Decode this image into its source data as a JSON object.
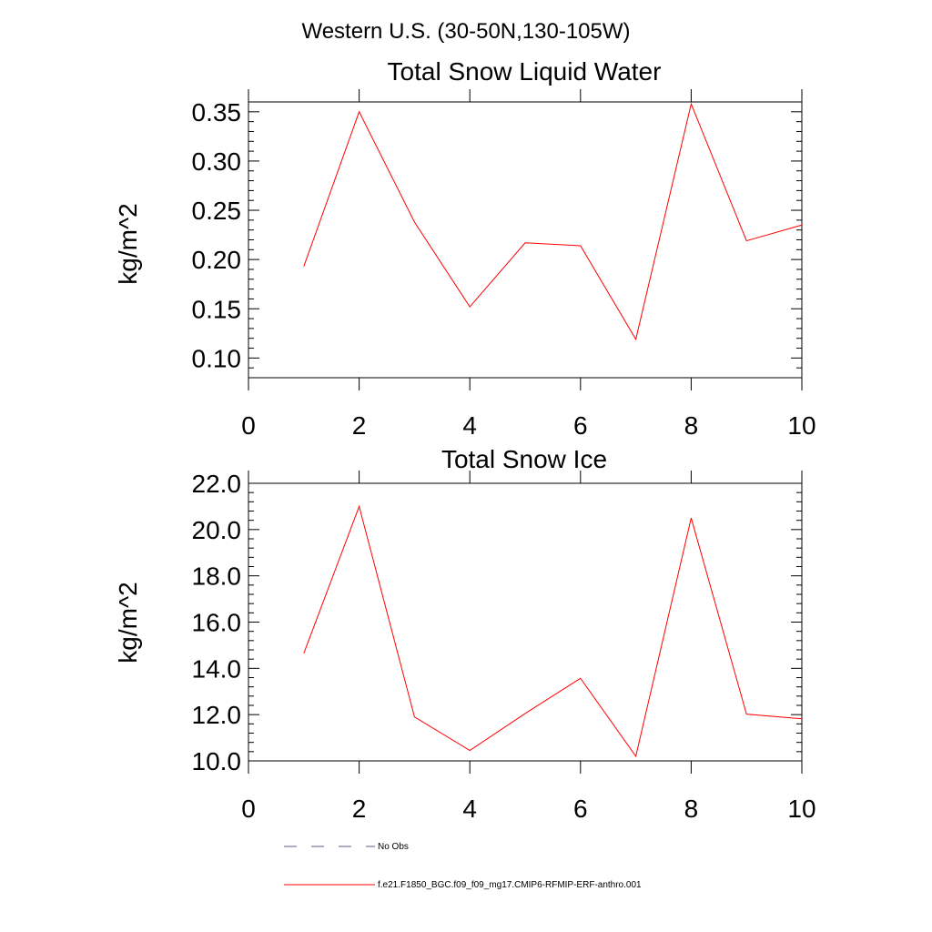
{
  "figure": {
    "suptitle": "Western U.S. (30-50N,130-105W)"
  },
  "chart_data": [
    {
      "type": "line",
      "title": "Total Snow Liquid Water",
      "xlabel": "",
      "ylabel": "kg/m^2",
      "xlim": [
        0,
        10
      ],
      "ylim": [
        0.08,
        0.36
      ],
      "xticks": [
        0,
        2,
        4,
        6,
        8,
        10
      ],
      "yticks": [
        0.1,
        0.15,
        0.2,
        0.25,
        0.3,
        0.35
      ],
      "ytick_labels": [
        "0.10",
        "0.15",
        "0.20",
        "0.25",
        "0.30",
        "0.35"
      ],
      "grid": false,
      "series": [
        {
          "name": "f.e21.F1850_BGC.f09_f09_mg17.CMIP6-RFMIP-ERF-anthro.001",
          "color": "#ff0000",
          "x": [
            1,
            2,
            3,
            4,
            5,
            6,
            7,
            8,
            9,
            10
          ],
          "values": [
            0.193,
            0.35,
            0.238,
            0.152,
            0.217,
            0.214,
            0.119,
            0.358,
            0.219,
            0.235
          ]
        }
      ]
    },
    {
      "type": "line",
      "title": "Total Snow Ice",
      "xlabel": "",
      "ylabel": "kg/m^2",
      "xlim": [
        0,
        10
      ],
      "ylim": [
        10.0,
        22.0
      ],
      "xticks": [
        0,
        2,
        4,
        6,
        8,
        10
      ],
      "yticks": [
        10,
        12,
        14,
        16,
        18,
        20,
        22
      ],
      "ytick_labels": [
        "10.0",
        "12.0",
        "14.0",
        "16.0",
        "18.0",
        "20.0",
        "22.0"
      ],
      "grid": false,
      "series": [
        {
          "name": "f.e21.F1850_BGC.f09_f09_mg17.CMIP6-RFMIP-ERF-anthro.001",
          "color": "#ff0000",
          "x": [
            1,
            2,
            3,
            4,
            5,
            6,
            7,
            8,
            9,
            10
          ],
          "values": [
            14.65,
            21.0,
            11.9,
            10.45,
            12.05,
            13.57,
            10.2,
            20.5,
            12.02,
            11.82
          ]
        }
      ]
    }
  ],
  "legend": {
    "placement": "bottom-left",
    "items": [
      {
        "label": "No Obs",
        "style": "dashed",
        "color": "#5a5a8a"
      },
      {
        "label": "f.e21.F1850_BGC.f09_f09_mg17.CMIP6-RFMIP-ERF-anthro.001",
        "style": "solid",
        "color": "#ff0000"
      }
    ]
  }
}
